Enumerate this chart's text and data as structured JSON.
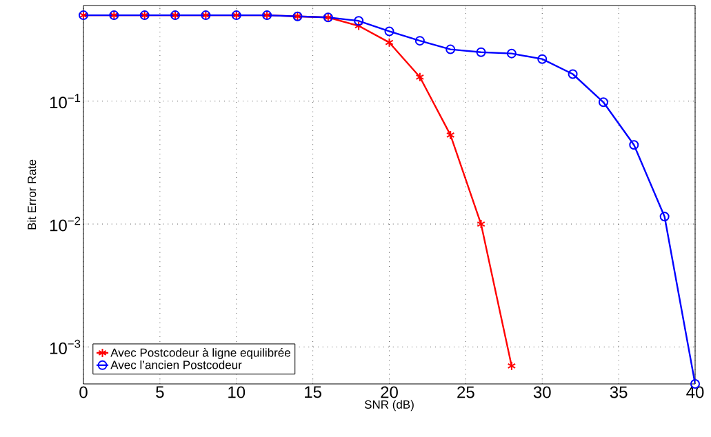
{
  "chart_data": {
    "type": "line",
    "xlabel": "SNR (dB)",
    "ylabel": "Bit Error Rate",
    "x": [
      0,
      2,
      4,
      6,
      8,
      10,
      12,
      14,
      16,
      18,
      20,
      22,
      24,
      26,
      28,
      30,
      32,
      34,
      36,
      38,
      40
    ],
    "series": [
      {
        "name": "Avec Postcodeur à ligne equilibrée",
        "color": "#ff0000",
        "marker": "cross",
        "values": [
          0.5,
          0.5,
          0.5,
          0.5,
          0.5,
          0.5,
          0.5,
          0.49,
          0.48,
          0.41,
          0.3,
          0.157,
          0.053,
          0.01,
          0.0007,
          null,
          null,
          null,
          null,
          null,
          null
        ]
      },
      {
        "name": "Avec l’ancien Postcodeur",
        "color": "#0000ff",
        "marker": "circle",
        "values": [
          0.5,
          0.5,
          0.5,
          0.5,
          0.5,
          0.5,
          0.5,
          0.49,
          0.48,
          0.45,
          0.37,
          0.31,
          0.264,
          0.25,
          0.244,
          0.22,
          0.166,
          0.098,
          0.044,
          0.0115,
          0.0005
        ]
      }
    ],
    "xlim": [
      0,
      40
    ],
    "xticks": [
      0,
      5,
      10,
      15,
      20,
      25,
      30,
      35,
      40
    ],
    "ylim": [
      0.0005,
      0.6
    ],
    "yticks": [
      {
        "value": 0.001,
        "label": "10$^{−3}$"
      },
      {
        "value": 0.01,
        "label": "10$^{−2}$"
      },
      {
        "value": 0.1,
        "label": "10$^{−1}$"
      }
    ],
    "log": "y",
    "grid": true,
    "legend": "bottom left",
    "line_style": "solid"
  }
}
